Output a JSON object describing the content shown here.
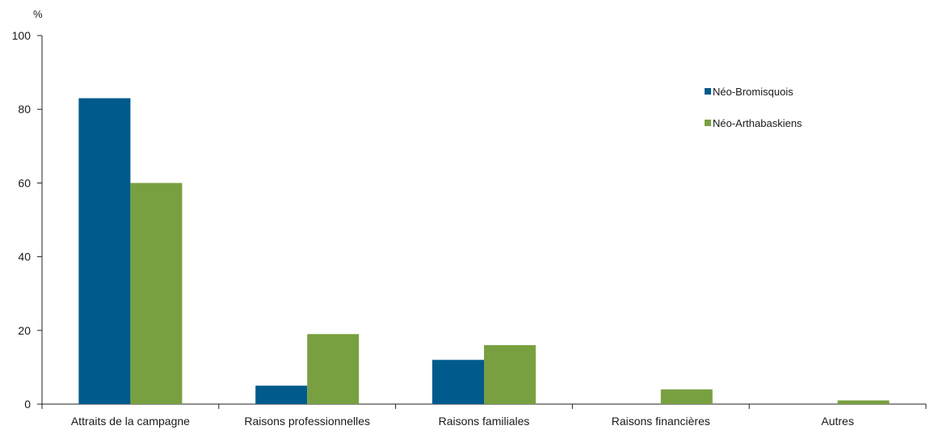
{
  "chart_data": {
    "type": "bar",
    "title": "",
    "xlabel": "",
    "ylabel": "%",
    "ylim": [
      0,
      100
    ],
    "yticks": [
      0,
      20,
      40,
      60,
      80,
      100
    ],
    "grid": false,
    "legend_position": "top-right",
    "categories": [
      "Attraits de la campagne",
      "Raisons professionnelles",
      "Raisons familiales",
      "Raisons financières",
      "Autres"
    ],
    "series": [
      {
        "name": "Néo-Bromisquois",
        "color": "#005a8c",
        "values": [
          83,
          5,
          12,
          0,
          0
        ]
      },
      {
        "name": "Néo-Arthabaskiens",
        "color": "#78a040",
        "values": [
          60,
          19,
          16,
          4,
          1
        ]
      }
    ]
  }
}
